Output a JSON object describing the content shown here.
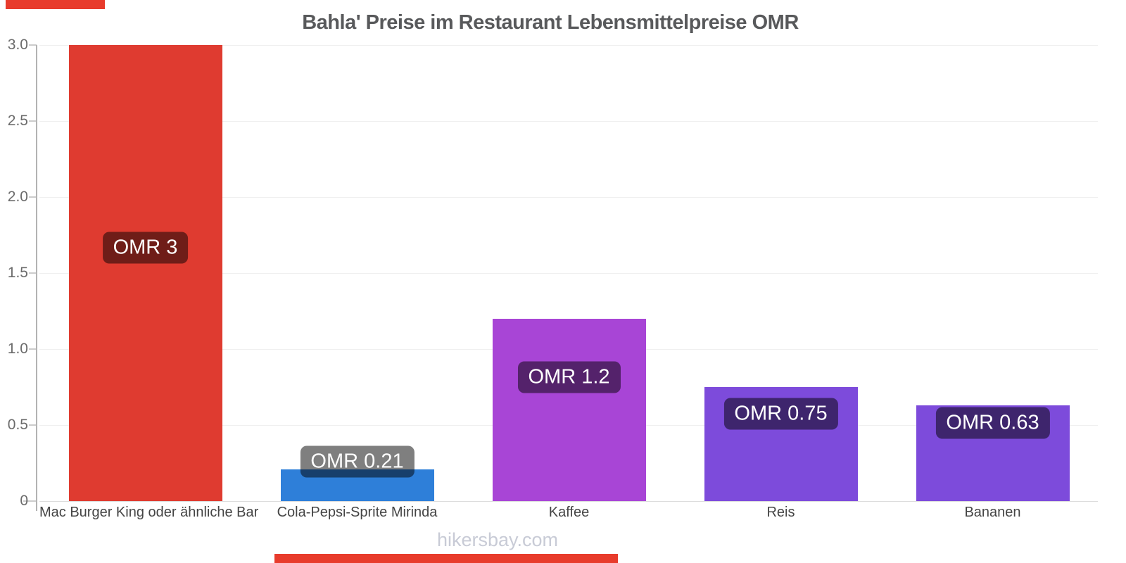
{
  "title": "Bahla' Preise im Restaurant Lebensmittelpreise OMR",
  "footer": "hikersbay.com",
  "chart_data": {
    "type": "bar",
    "title": "Bahla' Preise im Restaurant Lebensmittelpreise OMR",
    "categories": [
      "Mac Burger King oder ähnliche Bar",
      "Cola-Pepsi-Sprite Mirinda",
      "Kaffee",
      "Reis",
      "Bananen"
    ],
    "values": [
      3,
      0.21,
      1.2,
      0.75,
      0.63
    ],
    "bar_labels": [
      "OMR 3",
      "OMR 0.21",
      "OMR 1.2",
      "OMR 0.75",
      "OMR 0.63"
    ],
    "bar_colors": [
      "#df3b30",
      "#2e7fd9",
      "#a845d6",
      "#7d4bdb",
      "#7d4bdb"
    ],
    "currency": "OMR",
    "xlabel": "",
    "ylabel": "",
    "ylim": [
      0,
      3
    ],
    "yticks": [
      "3.0",
      "2.5",
      "2.0",
      "1.5",
      "1.0",
      "0.5",
      "0"
    ],
    "ytick_values": [
      3.0,
      2.5,
      2.0,
      1.5,
      1.0,
      0.5,
      0
    ],
    "grid": true,
    "legend": false
  },
  "colors": {
    "title_text": "#58595b",
    "axis_text": "#6b6b6b",
    "category_text": "#454545",
    "footer_text": "#c8cbd6",
    "grid_line": "#efefef",
    "baseline": "#dcdcdc",
    "axis_line": "#b3b3b3",
    "tick_mark": "#cccccc",
    "pill_bg": "rgba(0,0,0,0.5)",
    "pill_text": "#ffffff",
    "strip_red": "#e83b2c"
  }
}
